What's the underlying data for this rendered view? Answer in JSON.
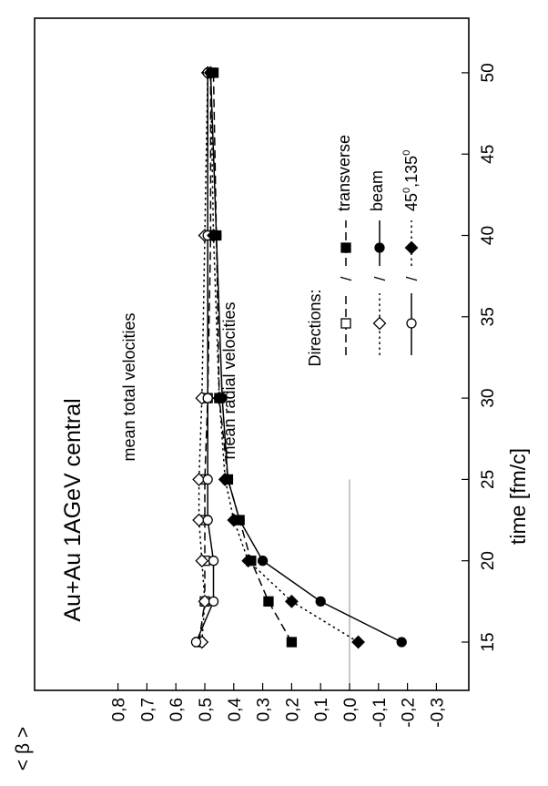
{
  "chart_data": {
    "type": "line",
    "orientation": "rotated-90-ccw",
    "title": "Au+Au 1AGeV central",
    "xlabel": "time   [fm/c]",
    "ylabel": "< β >",
    "x_ticks": [
      "15",
      "20",
      "25",
      "30",
      "35",
      "40",
      "45",
      "50"
    ],
    "y_ticks": [
      "0,8",
      "0,7",
      "0,6",
      "0,5",
      "0,4",
      "0,3",
      "0,2",
      "0,1",
      "0,0",
      "-0,1",
      "-0,2",
      "-0,3"
    ],
    "xlim": [
      12.5,
      52
    ],
    "ylim": [
      -0.3,
      0.85
    ],
    "grid": false,
    "annotations": [
      "mean total velocities",
      "mean radial velocities"
    ],
    "legend": {
      "title": "Directions:",
      "separator": "/",
      "labels": [
        "transverse",
        "beam",
        "45⁰,135⁰"
      ],
      "raw_labels": [
        "transverse",
        "beam",
        "45",
        "0",
        ",135",
        "0"
      ]
    },
    "reference_line": {
      "y": 0.0,
      "x_range": [
        12.5,
        25
      ],
      "color": "#999999"
    },
    "series": [
      {
        "name": "transverse",
        "group": "total",
        "marker": "square",
        "filled": false,
        "line": "dashed",
        "x": [
          15,
          17.5,
          20,
          22.5,
          25,
          30,
          40,
          50
        ],
        "y": [
          0.52,
          0.5,
          0.5,
          0.5,
          0.5,
          0.49,
          0.48,
          0.48
        ]
      },
      {
        "name": "beam",
        "group": "total",
        "marker": "diamond",
        "filled": false,
        "line": "dotted",
        "x": [
          15,
          17.5,
          20,
          22.5,
          25,
          30,
          40,
          50
        ],
        "y": [
          0.51,
          0.5,
          0.51,
          0.52,
          0.52,
          0.51,
          0.5,
          0.49
        ]
      },
      {
        "name": "45⁰,135⁰",
        "group": "total",
        "marker": "circle",
        "filled": false,
        "line": "solid",
        "x": [
          15,
          17.5,
          20,
          22.5,
          25,
          30,
          40,
          50
        ],
        "y": [
          0.53,
          0.47,
          0.47,
          0.49,
          0.49,
          0.49,
          0.49,
          0.49
        ]
      },
      {
        "name": "transverse",
        "group": "radial",
        "marker": "square",
        "filled": true,
        "line": "dashed",
        "x": [
          15,
          17.5,
          20,
          22.5,
          25,
          30,
          40,
          50
        ],
        "y": [
          0.2,
          0.28,
          0.34,
          0.38,
          0.42,
          0.45,
          0.46,
          0.47
        ]
      },
      {
        "name": "beam",
        "group": "radial",
        "marker": "circle",
        "filled": true,
        "line": "solid",
        "x": [
          15,
          17.5,
          20,
          22.5,
          25,
          30,
          40,
          50
        ],
        "y": [
          -0.18,
          0.1,
          0.3,
          0.38,
          0.42,
          0.44,
          0.46,
          0.48
        ]
      },
      {
        "name": "45⁰,135⁰",
        "group": "radial",
        "marker": "diamond",
        "filled": true,
        "line": "dotted",
        "x": [
          15,
          17.5,
          20,
          22.5,
          25,
          30,
          40,
          50
        ],
        "y": [
          -0.03,
          0.2,
          0.35,
          0.4,
          0.43,
          0.45,
          0.47,
          0.48
        ]
      }
    ]
  }
}
